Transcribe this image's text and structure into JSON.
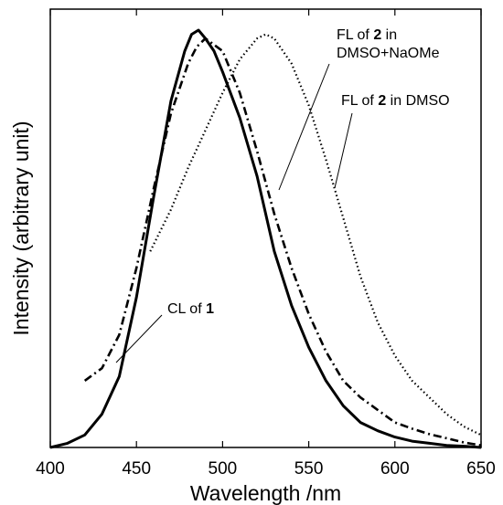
{
  "chart_data": {
    "type": "line",
    "title": "",
    "xlabel": "Wavelength /nm",
    "ylabel": "Intensity (arbitrary unit)",
    "xlim": [
      400,
      650
    ],
    "ylim": [
      0,
      1
    ],
    "x_ticks": [
      400,
      450,
      500,
      550,
      600,
      650
    ],
    "x_tick_labels": [
      "400",
      "450",
      "500",
      "550",
      "600",
      "650"
    ],
    "y_ticks_shown": false,
    "grid": false,
    "legend": "none (series labelled by annotations)",
    "series": [
      {
        "name": "CL of 1",
        "style": "solid",
        "color": "#000000",
        "x": [
          400,
          410,
          420,
          430,
          440,
          450,
          460,
          470,
          478,
          482,
          486,
          490,
          495,
          500,
          510,
          520,
          530,
          540,
          550,
          560,
          570,
          580,
          590,
          600,
          610,
          620,
          630,
          640,
          650
        ],
        "y": [
          0.0,
          0.01,
          0.03,
          0.08,
          0.17,
          0.36,
          0.6,
          0.83,
          0.95,
          0.99,
          1.0,
          0.98,
          0.95,
          0.9,
          0.79,
          0.65,
          0.47,
          0.34,
          0.24,
          0.16,
          0.1,
          0.06,
          0.04,
          0.025,
          0.015,
          0.01,
          0.005,
          0.003,
          0.0
        ]
      },
      {
        "name": "FL of 2 in DMSO+NaOMe",
        "style": "dash-dot",
        "color": "#000000",
        "x": [
          420,
          430,
          440,
          450,
          460,
          470,
          480,
          485,
          490,
          500,
          510,
          520,
          530,
          540,
          550,
          560,
          570,
          580,
          590,
          600,
          610,
          620,
          630,
          640,
          650
        ],
        "y": [
          0.16,
          0.19,
          0.27,
          0.43,
          0.62,
          0.8,
          0.92,
          0.96,
          0.98,
          0.95,
          0.85,
          0.71,
          0.56,
          0.43,
          0.32,
          0.23,
          0.16,
          0.12,
          0.09,
          0.06,
          0.045,
          0.032,
          0.022,
          0.012,
          0.005
        ]
      },
      {
        "name": "FL of 2 in DMSO",
        "style": "dotted",
        "color": "#000000",
        "x": [
          458,
          470,
          480,
          490,
          500,
          510,
          520,
          525,
          530,
          540,
          550,
          560,
          570,
          580,
          590,
          600,
          610,
          620,
          630,
          640,
          650
        ],
        "y": [
          0.47,
          0.57,
          0.67,
          0.76,
          0.85,
          0.93,
          0.98,
          0.99,
          0.98,
          0.92,
          0.82,
          0.69,
          0.55,
          0.41,
          0.3,
          0.22,
          0.16,
          0.12,
          0.08,
          0.05,
          0.03
        ]
      }
    ],
    "annotations": [
      {
        "id": "cl",
        "lines": [
          [
            {
              "t": "CL of ",
              "b": false
            },
            {
              "t": "1",
              "b": true
            }
          ]
        ]
      },
      {
        "id": "fl-naome",
        "lines": [
          [
            {
              "t": "FL of ",
              "b": false
            },
            {
              "t": "2",
              "b": true
            },
            {
              "t": " in",
              "b": false
            }
          ],
          [
            {
              "t": "DMSO+NaOMe",
              "b": false
            }
          ]
        ]
      },
      {
        "id": "fl-dmso",
        "lines": [
          [
            {
              "t": "FL of ",
              "b": false
            },
            {
              "t": "2",
              "b": true
            },
            {
              "t": " in DMSO",
              "b": false
            }
          ]
        ]
      }
    ]
  }
}
